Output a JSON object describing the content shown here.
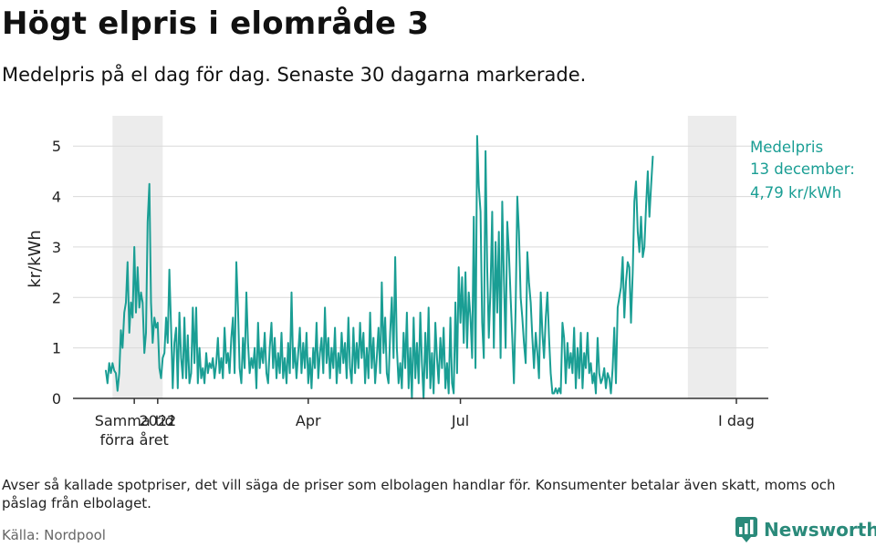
{
  "title": "Högt elpris i elområde 3",
  "subtitle": "Medelpris på el dag för dag.  Senaste 30 dagarna markerade.",
  "footnote": "Avser så kallade spotpriser, det vill säga de priser som elbolagen handlar för. Konsumenter betalar även skatt, moms och påslag från elbolaget.",
  "source": "Källa: Nordpool",
  "brand": "Newsworthy",
  "colors": {
    "line": "#1a9e94",
    "shade": "#ececec",
    "grid": "#d9d9d9",
    "axis": "#333333",
    "brand": "#2a8a7a"
  },
  "chart_data": {
    "type": "line",
    "ylabel": "kr/kWh",
    "ylim": [
      0,
      5.6
    ],
    "yticks": [
      0,
      1,
      2,
      3,
      4,
      5
    ],
    "x_unit": "days since 1 Dec 2021",
    "xlim": [
      0,
      377
    ],
    "xticks": [
      {
        "x": 17,
        "label": "Samma tid förra året"
      },
      {
        "x": 31,
        "label": "2022"
      },
      {
        "x": 121,
        "label": "Apr"
      },
      {
        "x": 212,
        "label": "Jul"
      },
      {
        "x": 377,
        "label": "I dag"
      }
    ],
    "shaded_ranges": [
      [
        4,
        34
      ],
      [
        348,
        377
      ]
    ],
    "annotation": {
      "lines": [
        "Medelpris",
        "13 december:",
        "4,79 kr/kWh"
      ],
      "value": 4.79
    },
    "series": [
      {
        "name": "Medelpris",
        "start_x": 0,
        "values": [
          0.55,
          0.3,
          0.7,
          0.5,
          0.7,
          0.55,
          0.5,
          0.15,
          0.5,
          1.35,
          1.0,
          1.7,
          1.9,
          2.7,
          1.3,
          1.9,
          1.6,
          3.0,
          1.7,
          2.6,
          1.8,
          2.1,
          1.9,
          0.9,
          1.3,
          3.5,
          4.25,
          1.9,
          1.1,
          1.6,
          1.4,
          1.5,
          0.6,
          0.4,
          0.8,
          0.9,
          1.6,
          1.1,
          2.55,
          1.4,
          0.2,
          1.1,
          1.4,
          0.2,
          1.7,
          0.8,
          0.4,
          1.6,
          0.4,
          1.25,
          0.3,
          0.5,
          1.8,
          0.7,
          1.8,
          0.3,
          1.0,
          0.4,
          0.6,
          0.3,
          0.9,
          0.5,
          0.7,
          0.6,
          0.8,
          0.4,
          0.7,
          1.2,
          0.5,
          0.8,
          0.4,
          1.4,
          0.7,
          0.9,
          0.5,
          1.2,
          1.6,
          0.5,
          2.7,
          1.8,
          0.6,
          0.3,
          1.2,
          0.6,
          2.1,
          1.1,
          0.5,
          0.8,
          0.6,
          1.0,
          0.2,
          1.5,
          0.6,
          1.0,
          0.7,
          1.3,
          0.5,
          0.3,
          1.0,
          1.5,
          0.6,
          1.2,
          0.4,
          0.9,
          0.5,
          1.3,
          0.4,
          0.8,
          0.3,
          1.1,
          0.5,
          2.1,
          0.6,
          1.0,
          0.4,
          0.9,
          1.4,
          0.5,
          1.1,
          0.6,
          1.3,
          0.3,
          0.8,
          0.2,
          1.0,
          0.6,
          1.5,
          0.4,
          0.9,
          1.2,
          0.5,
          1.8,
          0.7,
          1.2,
          0.4,
          1.0,
          0.6,
          1.4,
          0.3,
          0.9,
          0.5,
          1.3,
          0.7,
          1.1,
          0.4,
          1.6,
          0.6,
          0.3,
          1.4,
          0.5,
          1.1,
          0.6,
          1.5,
          0.8,
          1.3,
          0.3,
          1.0,
          0.4,
          1.7,
          0.6,
          1.2,
          0.3,
          0.8,
          1.4,
          0.5,
          2.3,
          0.9,
          1.6,
          0.5,
          0.3,
          1.3,
          2.0,
          0.8,
          2.8,
          1.0,
          0.3,
          0.7,
          0.2,
          1.3,
          0.6,
          1.7,
          0.2,
          1.0,
          0.0,
          1.6,
          0.4,
          1.1,
          0.3,
          1.7,
          0.7,
          0.0,
          1.3,
          0.4,
          1.8,
          0.2,
          0.9,
          0.1,
          1.5,
          0.8,
          0.3,
          1.2,
          0.6,
          1.4,
          0.2,
          0.7,
          0.1,
          1.6,
          0.3,
          0.1,
          1.9,
          0.5,
          2.6,
          1.5,
          2.4,
          1.1,
          2.5,
          1.0,
          2.1,
          1.6,
          0.8,
          3.6,
          0.6,
          5.2,
          4.2,
          3.7,
          1.5,
          0.8,
          4.9,
          2.6,
          1.2,
          2.2,
          3.7,
          1.0,
          3.1,
          1.7,
          3.3,
          0.8,
          3.9,
          2.4,
          1.0,
          3.5,
          2.9,
          2.0,
          1.2,
          0.3,
          1.8,
          4.0,
          3.3,
          2.0,
          1.6,
          1.1,
          0.7,
          2.9,
          2.3,
          1.9,
          1.2,
          0.6,
          1.3,
          0.9,
          0.4,
          2.1,
          1.3,
          0.8,
          1.6,
          2.1,
          1.2,
          0.5,
          0.1,
          0.1,
          0.2,
          0.1,
          0.2,
          0.1,
          1.5,
          1.2,
          0.3,
          1.1,
          0.6,
          0.9,
          0.5,
          1.4,
          0.2,
          1.0,
          0.4,
          1.3,
          0.2,
          0.9,
          0.6,
          1.3,
          0.5,
          0.7,
          0.3,
          0.5,
          0.1,
          1.2,
          0.5,
          0.3,
          0.4,
          0.6,
          0.2,
          0.5,
          0.4,
          0.1,
          0.6,
          1.4,
          0.3,
          1.8,
          2.0,
          2.2,
          2.8,
          1.6,
          2.3,
          2.7,
          2.6,
          1.5,
          2.5,
          3.9,
          4.3,
          3.3,
          2.9,
          3.6,
          2.8,
          3.0,
          3.8,
          4.5,
          3.6,
          4.2,
          4.79
        ]
      }
    ]
  }
}
